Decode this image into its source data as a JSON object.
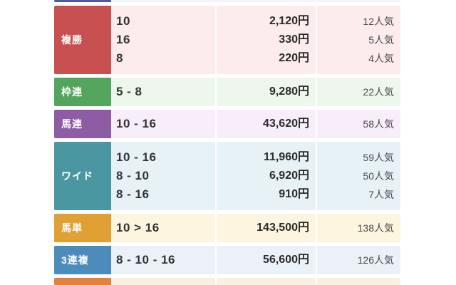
{
  "page": {
    "background_color": "#ffffff",
    "description_labels": {
      "payout_unit_suffix": "円",
      "popularity_suffix": "人気"
    }
  },
  "table": {
    "rows": [
      {
        "id": "tansho-partial",
        "label": "",
        "label_color": "#5257a8",
        "row_background": "#f5f4fa",
        "entries": []
      },
      {
        "id": "fukusho",
        "label": "複勝",
        "label_color": "#c85051",
        "row_background": "#fcecec",
        "entries": [
          {
            "combo": "10",
            "payout": "2,120円",
            "ninki": "12人気"
          },
          {
            "combo": "16",
            "payout": "330円",
            "ninki": "5人気"
          },
          {
            "combo": "8",
            "payout": "220円",
            "ninki": "4人気"
          }
        ]
      },
      {
        "id": "wakuren",
        "label": "枠連",
        "label_color": "#53a45c",
        "row_background": "#edf7eb",
        "entries": [
          {
            "combo": "5 - 8",
            "payout": "9,280円",
            "ninki": "22人気"
          }
        ]
      },
      {
        "id": "umaren",
        "label": "馬連",
        "label_color": "#8d5ca4",
        "row_background": "#f8eefb",
        "entries": [
          {
            "combo": "10 - 16",
            "payout": "43,620円",
            "ninki": "58人気"
          }
        ]
      },
      {
        "id": "wide",
        "label": "ワイド",
        "label_color": "#4b97a1",
        "row_background": "#e7f2f7",
        "entries": [
          {
            "combo": "10 - 16",
            "payout": "11,960円",
            "ninki": "59人気"
          },
          {
            "combo": "8 - 10",
            "payout": "6,920円",
            "ninki": "50人気"
          },
          {
            "combo": "8 - 16",
            "payout": "910円",
            "ninki": "7人気"
          }
        ]
      },
      {
        "id": "umatan",
        "label": "馬単",
        "label_color": "#e0a034",
        "row_background": "#fdf5e0",
        "entries": [
          {
            "combo": "10 > 16",
            "payout": "143,500円",
            "ninki": "138人気"
          }
        ]
      },
      {
        "id": "sanrenpuku",
        "label": "3連複",
        "label_color": "#4b8cba",
        "row_background": "#eaf2f8",
        "entries": [
          {
            "combo": "8 - 10 - 16",
            "payout": "56,600円",
            "ninki": "126人気"
          }
        ]
      },
      {
        "id": "sanrentan-partial",
        "label": "",
        "label_color": "#e2813b",
        "row_background": "#fbf0e0",
        "entries": []
      }
    ]
  }
}
